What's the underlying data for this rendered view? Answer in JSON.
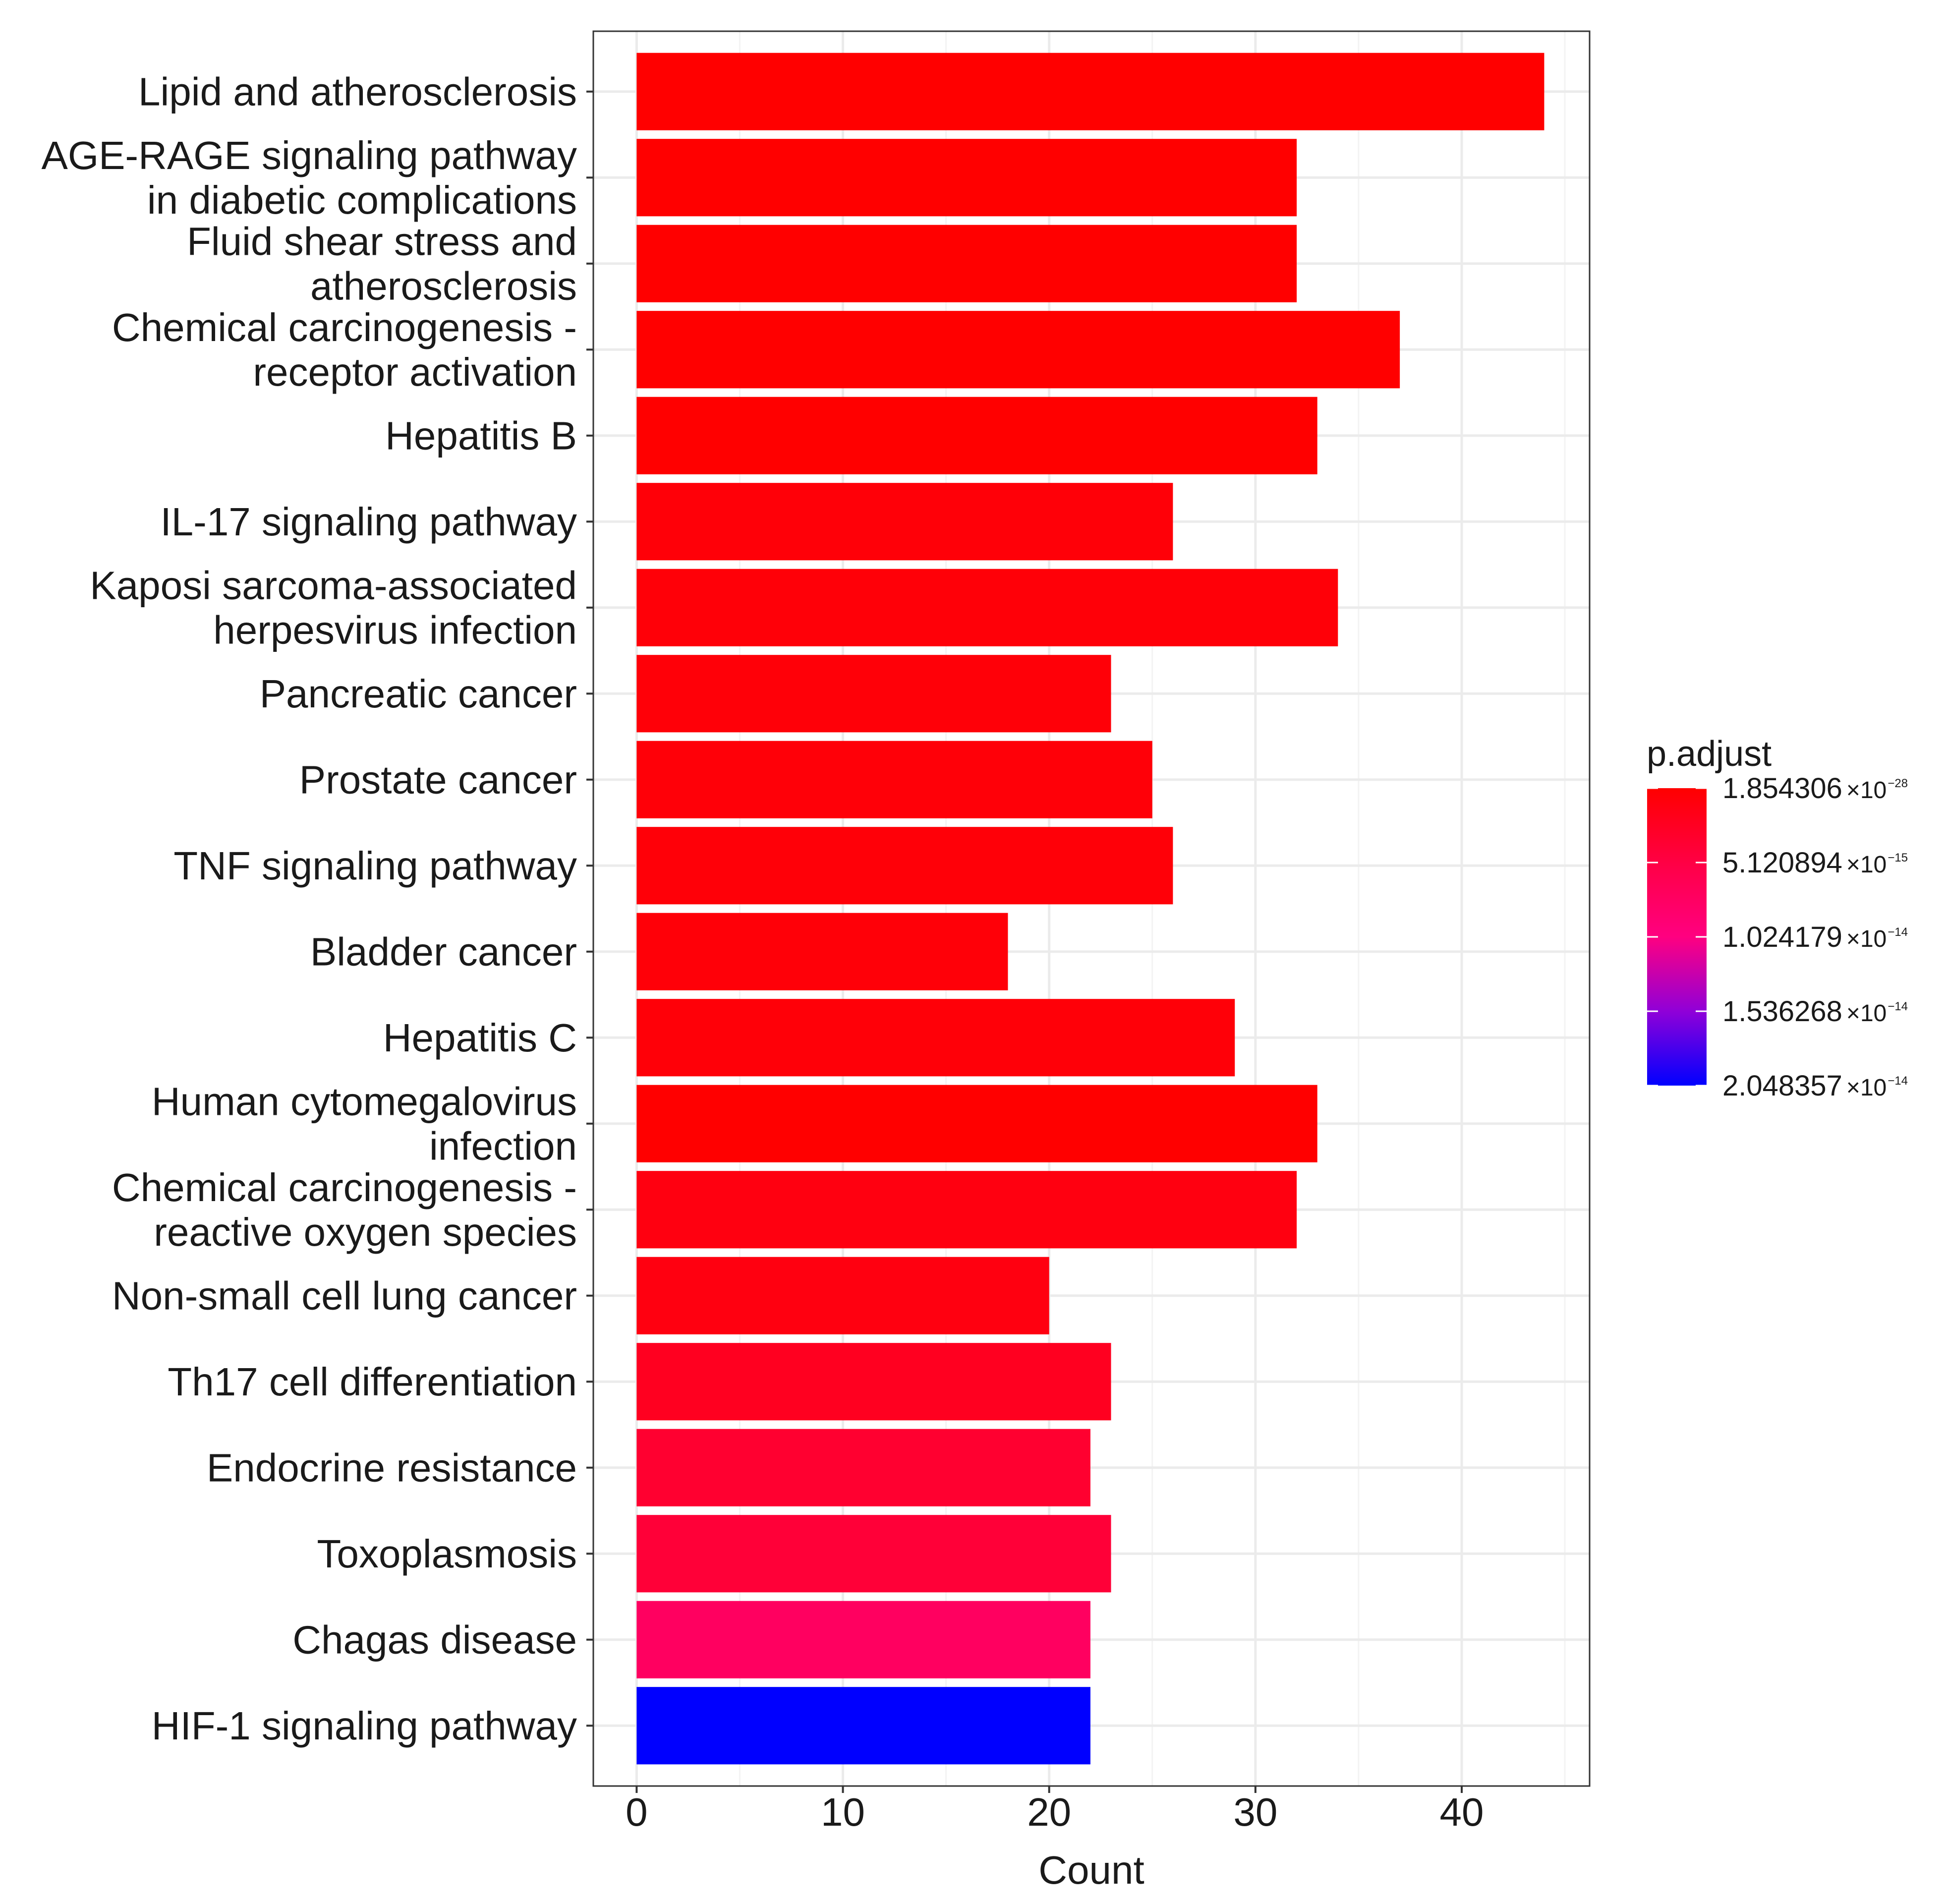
{
  "chart_data": {
    "type": "bar",
    "orientation": "horizontal",
    "xlabel": "Count",
    "ylabel": "",
    "xlim": [
      -2.1,
      46.2
    ],
    "xticks": [
      0,
      10,
      20,
      30,
      40
    ],
    "grid": true,
    "categories": [
      [
        "Lipid and atherosclerosis"
      ],
      [
        "AGE-RAGE signaling pathway",
        "in diabetic complications"
      ],
      [
        "Fluid shear stress and",
        "atherosclerosis"
      ],
      [
        "Chemical carcinogenesis -",
        "receptor activation"
      ],
      [
        "Hepatitis B"
      ],
      [
        "IL-17 signaling pathway"
      ],
      [
        "Kaposi sarcoma-associated",
        "herpesvirus infection"
      ],
      [
        "Pancreatic cancer"
      ],
      [
        "Prostate cancer"
      ],
      [
        "TNF signaling pathway"
      ],
      [
        "Bladder cancer"
      ],
      [
        "Hepatitis C"
      ],
      [
        "Human cytomegalovirus",
        "infection"
      ],
      [
        "Chemical carcinogenesis -",
        "reactive oxygen species"
      ],
      [
        "Non-small cell lung cancer"
      ],
      [
        "Th17 cell differentiation"
      ],
      [
        "Endocrine resistance"
      ],
      [
        "Toxoplasmosis"
      ],
      [
        "Chagas disease"
      ],
      [
        "HIF-1 signaling pathway"
      ]
    ],
    "values": [
      44,
      32,
      32,
      37,
      33,
      26,
      34,
      23,
      25,
      26,
      18,
      29,
      33,
      32,
      20,
      23,
      22,
      23,
      22,
      22
    ],
    "bar_colors": [
      "#ff0000",
      "#ff0000",
      "#ff0000",
      "#ff0000",
      "#ff0000",
      "#ff0008",
      "#ff0008",
      "#ff0008",
      "#ff0008",
      "#ff0008",
      "#ff0008",
      "#ff0008",
      "#ff0000",
      "#ff0010",
      "#ff0010",
      "#ff0020",
      "#ff0030",
      "#ff0038",
      "#ff0060",
      "#0000ff"
    ],
    "legend": {
      "title": "p.adjust",
      "position": "right",
      "labels": [
        {
          "mantissa": "1.854306",
          "times": "×10",
          "exponent": "−28"
        },
        {
          "mantissa": "5.120894",
          "times": "×10",
          "exponent": "−15"
        },
        {
          "mantissa": "1.024179",
          "times": "×10",
          "exponent": "−14"
        },
        {
          "mantissa": "1.536268",
          "times": "×10",
          "exponent": "−14"
        },
        {
          "mantissa": "2.048357",
          "times": "×10",
          "exponent": "−14"
        }
      ],
      "gradient": [
        "#ff0000",
        "#ff0044",
        "#ff0080",
        "#9000d8",
        "#0000ff"
      ]
    }
  }
}
